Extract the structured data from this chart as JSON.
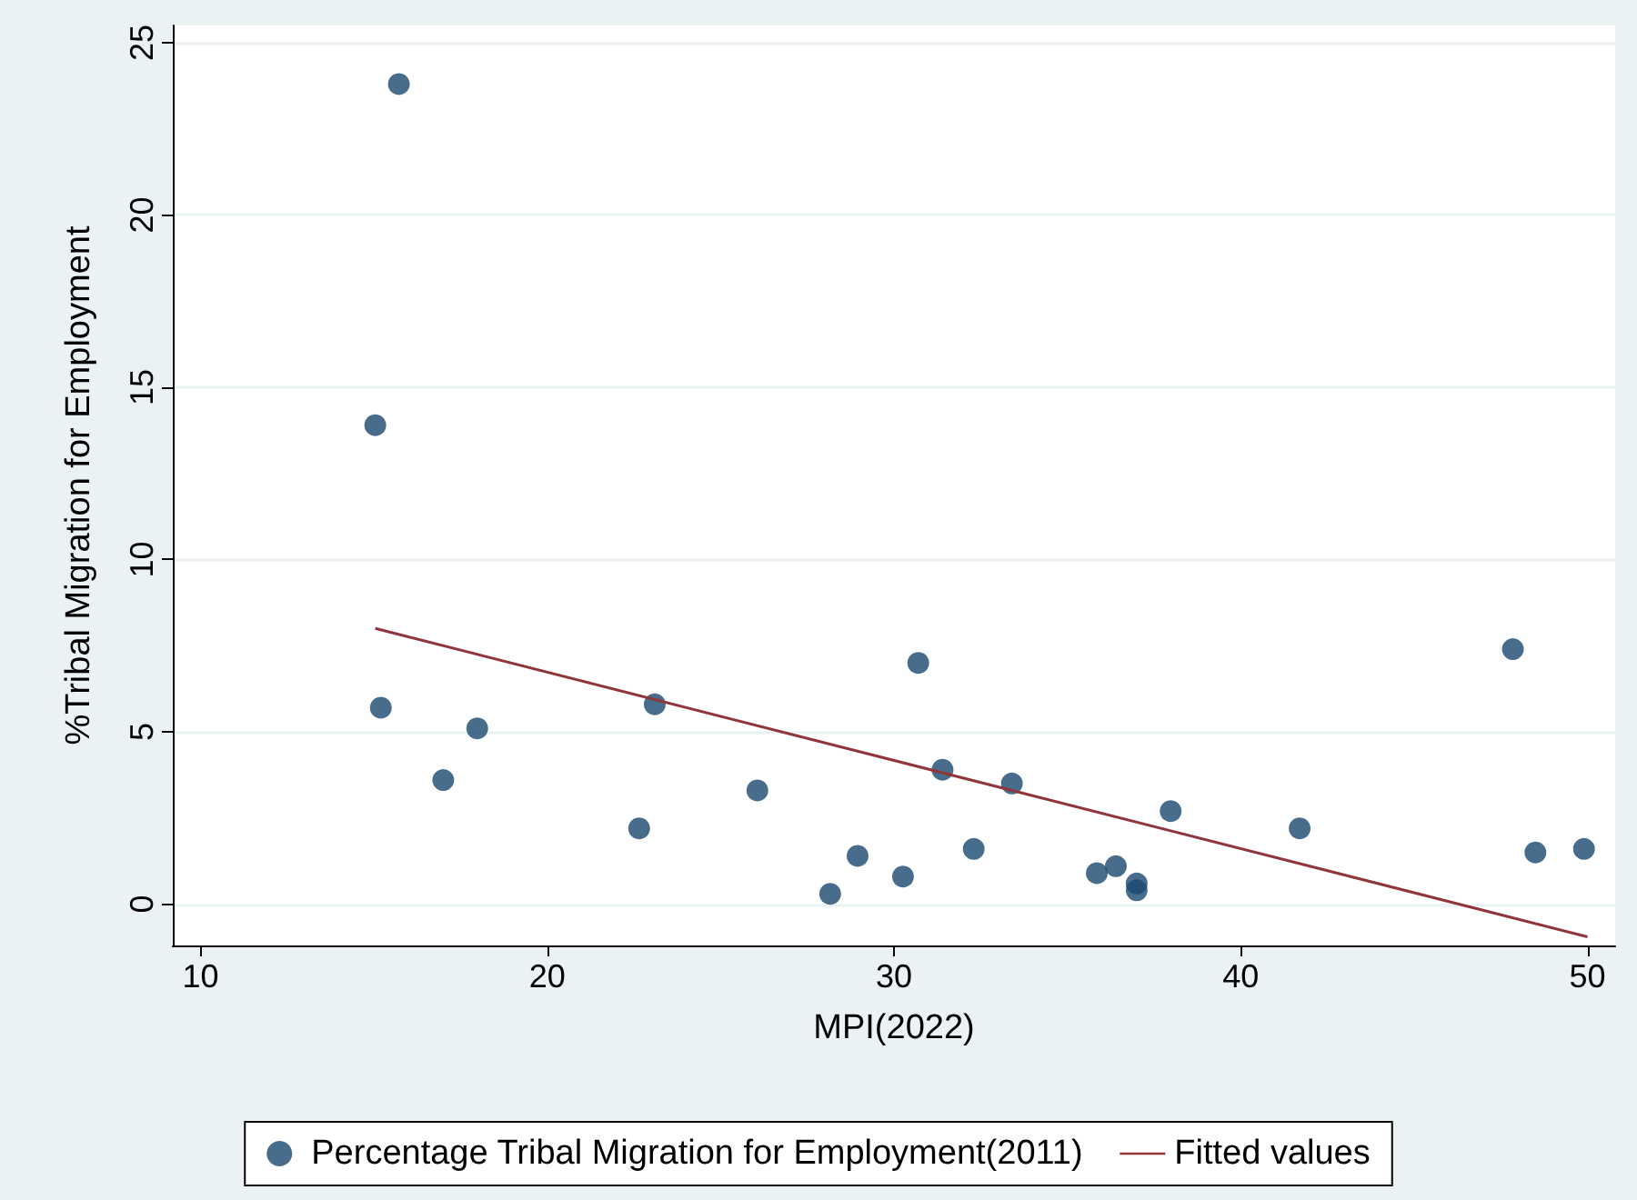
{
  "chart_data": {
    "type": "scatter",
    "xlabel": "MPI(2022)",
    "ylabel": "%Tribal Migration for Employment",
    "xlim": [
      9.2,
      50.8
    ],
    "ylim": [
      -1.2,
      25.5
    ],
    "xticks": [
      10,
      20,
      30,
      40,
      50
    ],
    "yticks": [
      0,
      5,
      10,
      15,
      20,
      25
    ],
    "grid": "y",
    "legend": "bottom",
    "series": [
      {
        "name": "Percentage Tribal Migration for Employment(2011)",
        "marker": "circle",
        "color": "#1a476f",
        "x": [
          15.72,
          15.04,
          15.2,
          17.0,
          17.98,
          22.65,
          23.1,
          26.06,
          28.16,
          28.95,
          30.26,
          30.7,
          31.4,
          32.3,
          33.4,
          35.85,
          36.4,
          37.0,
          37.0,
          37.98,
          41.7,
          47.85,
          48.5,
          49.9
        ],
        "values": [
          23.8,
          13.9,
          5.7,
          3.6,
          5.1,
          2.2,
          5.8,
          3.3,
          0.3,
          1.4,
          0.8,
          7.0,
          3.9,
          1.6,
          3.5,
          0.9,
          1.1,
          0.6,
          0.4,
          2.7,
          2.2,
          7.4,
          1.5,
          1.6
        ]
      },
      {
        "name": "Fitted values",
        "type": "line",
        "marker": "none",
        "color": "#90353b",
        "x": [
          15.04,
          50.0
        ],
        "values": [
          8.0,
          -0.95
        ]
      }
    ]
  }
}
